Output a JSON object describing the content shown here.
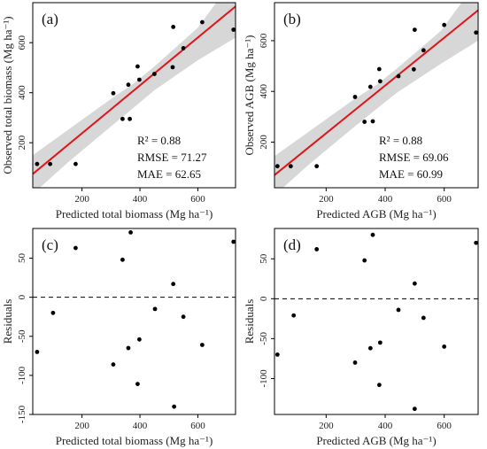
{
  "chart_data": [
    {
      "id": "a",
      "type": "scatter",
      "panel_label": "(a)",
      "xlabel": "Predicted total biomass (Mg ha⁻¹)",
      "ylabel": "Observed total biomass (Mg ha⁻¹)",
      "xlim": [
        30,
        730
      ],
      "ylim": [
        20,
        760
      ],
      "xticks": [
        200,
        400,
        600
      ],
      "yticks": [
        200,
        400,
        600
      ],
      "grid": false,
      "points": [
        {
          "x": 45,
          "y": 115
        },
        {
          "x": 90,
          "y": 115
        },
        {
          "x": 178,
          "y": 115
        },
        {
          "x": 308,
          "y": 398
        },
        {
          "x": 340,
          "y": 295
        },
        {
          "x": 360,
          "y": 432
        },
        {
          "x": 365,
          "y": 295
        },
        {
          "x": 392,
          "y": 505
        },
        {
          "x": 398,
          "y": 452
        },
        {
          "x": 450,
          "y": 475
        },
        {
          "x": 513,
          "y": 502
        },
        {
          "x": 515,
          "y": 663
        },
        {
          "x": 550,
          "y": 578
        },
        {
          "x": 615,
          "y": 682
        },
        {
          "x": 723,
          "y": 652
        }
      ],
      "fit_line": {
        "x": [
          30,
          730
        ],
        "y": [
          75,
          745
        ]
      },
      "confidence_band": {
        "x": [
          30,
          150,
          300,
          380,
          450,
          600,
          730
        ],
        "lower": [
          -5,
          120,
          265,
          342,
          410,
          530,
          620
        ],
        "upper": [
          150,
          250,
          375,
          438,
          505,
          660,
          865
        ]
      },
      "stats": [
        "R² = 0.88",
        "RMSE = 71.27",
        "MAE = 62.65"
      ]
    },
    {
      "id": "b",
      "type": "scatter",
      "panel_label": "(b)",
      "xlabel": "Predicted AGB (Mg ha⁻¹)",
      "ylabel": "Observed AGB (Mg ha⁻¹)",
      "xlim": [
        25,
        715
      ],
      "ylim": [
        20,
        750
      ],
      "xticks": [
        200,
        400,
        600
      ],
      "yticks": [
        200,
        400,
        600
      ],
      "grid": false,
      "points": [
        {
          "x": 35,
          "y": 105
        },
        {
          "x": 80,
          "y": 105
        },
        {
          "x": 168,
          "y": 105
        },
        {
          "x": 298,
          "y": 378
        },
        {
          "x": 330,
          "y": 280
        },
        {
          "x": 350,
          "y": 418
        },
        {
          "x": 358,
          "y": 282
        },
        {
          "x": 380,
          "y": 488
        },
        {
          "x": 383,
          "y": 440
        },
        {
          "x": 445,
          "y": 460
        },
        {
          "x": 497,
          "y": 487
        },
        {
          "x": 500,
          "y": 643
        },
        {
          "x": 530,
          "y": 562
        },
        {
          "x": 600,
          "y": 662
        },
        {
          "x": 708,
          "y": 632
        }
      ],
      "fit_line": {
        "x": [
          25,
          715
        ],
        "y": [
          70,
          720
        ]
      },
      "confidence_band": {
        "x": [
          25,
          140,
          290,
          370,
          440,
          590,
          715
        ],
        "lower": [
          -10,
          110,
          255,
          330,
          395,
          510,
          600
        ],
        "upper": [
          145,
          240,
          365,
          425,
          490,
          640,
          840
        ]
      },
      "stats": [
        "R² = 0.88",
        "RMSE = 69.06",
        "MAE = 60.99"
      ]
    },
    {
      "id": "c",
      "type": "scatter",
      "panel_label": "(c)",
      "xlabel": "Predicted total biomass (Mg ha⁻¹)",
      "ylabel": "Residuals",
      "xlim": [
        30,
        730
      ],
      "ylim": [
        -150,
        88
      ],
      "xticks": [
        200,
        400,
        600
      ],
      "yticks": [
        -150,
        -100,
        -50,
        0,
        50
      ],
      "grid": false,
      "reference_line_y": 0,
      "points": [
        {
          "x": 45,
          "y": -70
        },
        {
          "x": 100,
          "y": -20
        },
        {
          "x": 178,
          "y": 63
        },
        {
          "x": 308,
          "y": -86
        },
        {
          "x": 340,
          "y": 48
        },
        {
          "x": 360,
          "y": -65
        },
        {
          "x": 368,
          "y": 83
        },
        {
          "x": 392,
          "y": -111
        },
        {
          "x": 398,
          "y": -54
        },
        {
          "x": 452,
          "y": -15
        },
        {
          "x": 515,
          "y": 17
        },
        {
          "x": 518,
          "y": -140
        },
        {
          "x": 550,
          "y": -25
        },
        {
          "x": 615,
          "y": -61
        },
        {
          "x": 723,
          "y": 71
        }
      ]
    },
    {
      "id": "d",
      "type": "scatter",
      "panel_label": "(d)",
      "xlabel": "Predicted AGB (Mg ha⁻¹)",
      "ylabel": "Residuals",
      "xlim": [
        25,
        715
      ],
      "ylim": [
        -145,
        88
      ],
      "xticks": [
        200,
        400,
        600
      ],
      "yticks": [
        -100,
        -50,
        0,
        50
      ],
      "grid": false,
      "reference_line_y": 0,
      "points": [
        {
          "x": 35,
          "y": -70
        },
        {
          "x": 90,
          "y": -21
        },
        {
          "x": 168,
          "y": 62
        },
        {
          "x": 298,
          "y": -80
        },
        {
          "x": 330,
          "y": 48
        },
        {
          "x": 350,
          "y": -62
        },
        {
          "x": 358,
          "y": 80
        },
        {
          "x": 380,
          "y": -108
        },
        {
          "x": 383,
          "y": -55
        },
        {
          "x": 445,
          "y": -14
        },
        {
          "x": 500,
          "y": 19
        },
        {
          "x": 500,
          "y": -138
        },
        {
          "x": 530,
          "y": -24
        },
        {
          "x": 600,
          "y": -60
        },
        {
          "x": 708,
          "y": 70
        }
      ]
    }
  ]
}
